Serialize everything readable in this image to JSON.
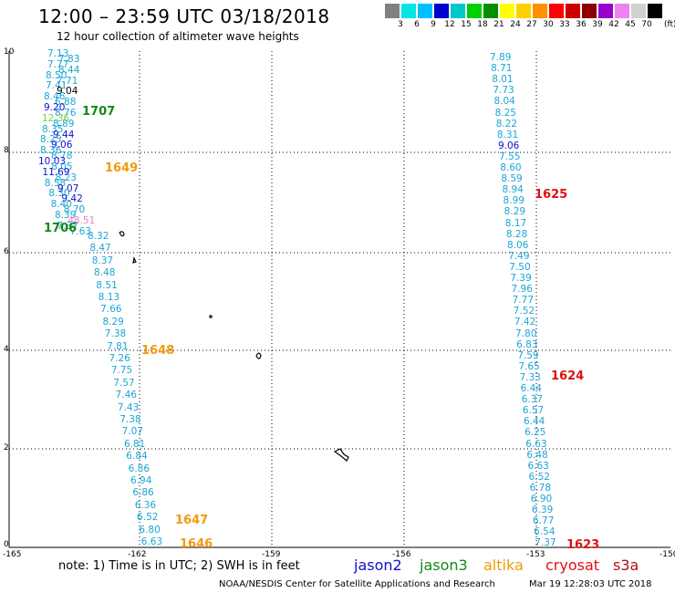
{
  "title": "12:00 – 23:59 UTC 03/18/2018",
  "subtitle": "12 hour collection of altimeter wave heights",
  "color_scale": {
    "labels": [
      "3",
      "6",
      "9",
      "12",
      "15",
      "18",
      "21",
      "24",
      "27",
      "30",
      "33",
      "36",
      "39",
      "42",
      "45",
      "70"
    ],
    "colors": [
      "#808080",
      "#00e5e5",
      "#00bfff",
      "#0000cd",
      "#00c8c8",
      "#00d000",
      "#009000",
      "#ffff00",
      "#ffd000",
      "#ff9000",
      "#ff0000",
      "#cc0000",
      "#8b0000",
      "#9900cc",
      "#ee82ee",
      "#d0d0d0",
      "#000000"
    ],
    "unit": "(ft)"
  },
  "axes": {
    "x_ticks": [
      "-165",
      "-162",
      "-159",
      "-156",
      "-153",
      "-150"
    ],
    "y_ticks": [
      "0",
      "2",
      "4",
      "6",
      "8",
      "10"
    ]
  },
  "colors": {
    "wave": "#1aa6d6",
    "jason2": "#1010d0",
    "jason3": "#108a10",
    "altika": "#f29a0c",
    "cryosat": "#e01010",
    "s3a": "#b01010",
    "pink": "#f080c8"
  },
  "track_left": [
    {
      "v": "7.13",
      "c": "wave"
    },
    {
      "v": "7.83",
      "c": "wave"
    },
    {
      "v": "7.77",
      "c": "wave"
    },
    {
      "v": "8.44",
      "c": "wave"
    },
    {
      "v": "8.50",
      "c": "wave"
    },
    {
      "v": "7.71",
      "c": "wave"
    },
    {
      "v": "7.41",
      "c": "wave"
    },
    {
      "v": "9.04",
      "c": "black"
    },
    {
      "v": "8.46",
      "c": "wave"
    },
    {
      "v": "6.88",
      "c": "wave"
    },
    {
      "v": "9.20",
      "c": "jason2"
    },
    {
      "v": "8.76",
      "c": "wave"
    },
    {
      "v": "12.36",
      "c": "lime"
    },
    {
      "v": "8.89",
      "c": "wave"
    },
    {
      "v": "8.35",
      "c": "wave"
    },
    {
      "v": "9.44",
      "c": "jason2"
    },
    {
      "v": "8.25",
      "c": "wave"
    },
    {
      "v": "9.06",
      "c": "jason2"
    },
    {
      "v": "8.36",
      "c": "wave"
    },
    {
      "v": "8.78",
      "c": "wave"
    },
    {
      "v": "10.03",
      "c": "jason2"
    },
    {
      "v": "8.05",
      "c": "wave"
    },
    {
      "v": "11.69",
      "c": "jason2"
    },
    {
      "v": "8.23",
      "c": "wave"
    },
    {
      "v": "8.58",
      "c": "wave"
    },
    {
      "v": "9.07",
      "c": "jason2"
    },
    {
      "v": "8.30",
      "c": "wave"
    },
    {
      "v": "9.42",
      "c": "jason2"
    },
    {
      "v": "8.40",
      "c": "wave"
    },
    {
      "v": "8.70",
      "c": "wave"
    },
    {
      "v": "8.39",
      "c": "wave"
    },
    {
      "v": "48.51",
      "c": "pink"
    },
    {
      "v": "7.37",
      "c": "wave"
    },
    {
      "v": "7.63",
      "c": "wave"
    },
    {
      "v": "8.32",
      "c": "wave"
    },
    {
      "v": "8.47",
      "c": "wave"
    },
    {
      "v": "8.37",
      "c": "wave"
    },
    {
      "v": "8.48",
      "c": "wave"
    },
    {
      "v": "8.51",
      "c": "wave"
    },
    {
      "v": "8.13",
      "c": "wave"
    },
    {
      "v": "7.66",
      "c": "wave"
    },
    {
      "v": "8.29",
      "c": "wave"
    },
    {
      "v": "7.38",
      "c": "wave"
    },
    {
      "v": "7.81",
      "c": "wave"
    },
    {
      "v": "7.26",
      "c": "wave"
    },
    {
      "v": "7.75",
      "c": "wave"
    },
    {
      "v": "7.57",
      "c": "wave"
    },
    {
      "v": "7.46",
      "c": "wave"
    },
    {
      "v": "7.43",
      "c": "wave"
    },
    {
      "v": "7.38",
      "c": "wave"
    },
    {
      "v": "7.07",
      "c": "wave"
    },
    {
      "v": "6.81",
      "c": "wave"
    },
    {
      "v": "6.84",
      "c": "wave"
    },
    {
      "v": "6.86",
      "c": "wave"
    },
    {
      "v": "6.94",
      "c": "wave"
    },
    {
      "v": "6.86",
      "c": "wave"
    },
    {
      "v": "6.36",
      "c": "wave"
    },
    {
      "v": "6.52",
      "c": "wave"
    },
    {
      "v": "6.80",
      "c": "wave"
    },
    {
      "v": "6.63",
      "c": "wave"
    }
  ],
  "track_right": [
    "7.89",
    "8.71",
    "8.01",
    "7.73",
    "8.04",
    "8.25",
    "8.22",
    "8.31",
    "9.06",
    "7.55",
    "8.60",
    "8.59",
    "8.94",
    "8.99",
    "8.29",
    "8.17",
    "8.28",
    "8.06",
    "7.49",
    "7.50",
    "7.39",
    "7.96",
    "7.77",
    "7.52",
    "7.42",
    "7.80",
    "6.83",
    "7.59",
    "7.65",
    "7.33",
    "6.44",
    "6.37",
    "6.57",
    "6.44",
    "6.25",
    "6.63",
    "6.48",
    "6.63",
    "6.52",
    "6.78",
    "6.90",
    "6.39",
    "6.77",
    "6.54",
    "7.37"
  ],
  "passes": [
    {
      "t": "1707",
      "c": "jason3"
    },
    {
      "t": "1649",
      "c": "altika"
    },
    {
      "t": "1706",
      "c": "jason3"
    },
    {
      "t": "1648",
      "c": "altika"
    },
    {
      "t": "1647",
      "c": "altika"
    },
    {
      "t": "1646",
      "c": "altika"
    },
    {
      "t": "1625",
      "c": "cryosat"
    },
    {
      "t": "1624",
      "c": "cryosat"
    },
    {
      "t": "1623",
      "c": "cryosat"
    }
  ],
  "note": "note:  1) Time is in UTC;  2) SWH is in feet",
  "legend": [
    {
      "t": "jason2",
      "c": "jason2"
    },
    {
      "t": "jason3",
      "c": "jason3"
    },
    {
      "t": "altika",
      "c": "altika"
    },
    {
      "t": "cryosat",
      "c": "cryosat"
    },
    {
      "t": "s3a",
      "c": "s3a"
    }
  ],
  "credit": "NOAA/NESDIS Center for Satellite Applications and Research",
  "stamp": "Mar 19 12:28:03 UTC 2018"
}
